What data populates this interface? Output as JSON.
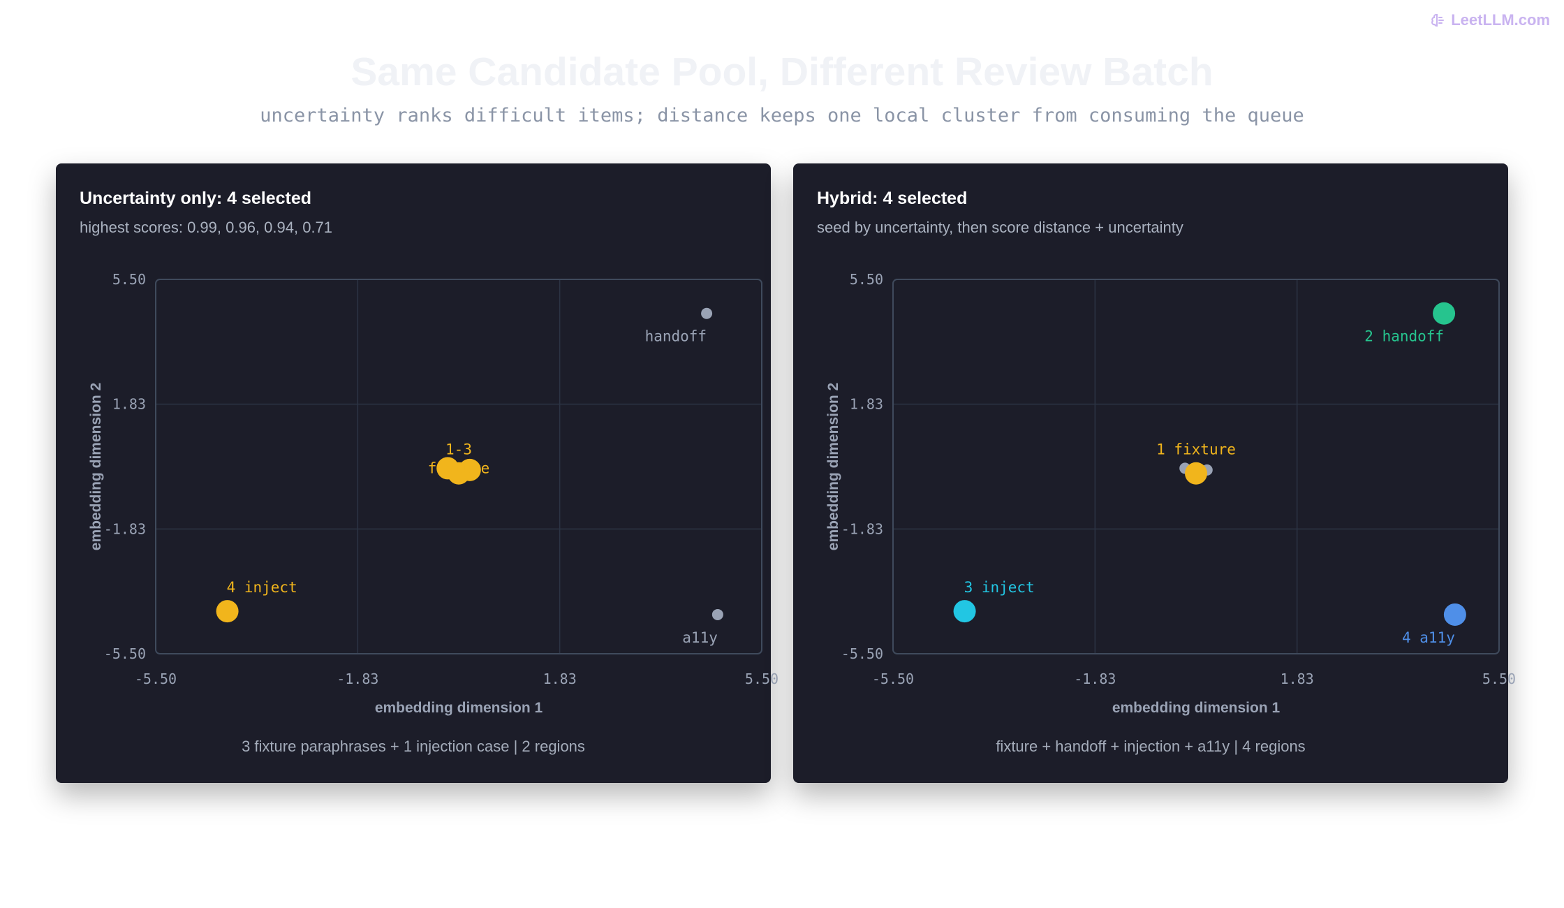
{
  "brand": {
    "name": "LeetLLM.com",
    "icon": "brain-icon"
  },
  "header": {
    "title": "Same Candidate Pool, Different Review Batch",
    "subtitle": "uncertainty ranks difficult items; distance keeps one local cluster from consuming the queue"
  },
  "colors": {
    "gray": "#9aa3b5",
    "amber": "#f1b51c",
    "green": "#26c48e",
    "cyan": "#22c6e3",
    "blue": "#4f8fe8",
    "grid": "#2c3444",
    "frame": "#3f4a5c"
  },
  "panels": [
    {
      "title": "Uncertainty only: 4 selected",
      "subtitle": "highest scores: 0.99, 0.96, 0.94, 0.71",
      "footer": "3 fixture paraphrases + 1 injection case | 2 regions"
    },
    {
      "title": "Hybrid: 4 selected",
      "subtitle": "seed by uncertainty, then score distance + uncertainty",
      "footer": "fixture + handoff + injection + a11y | 4 regions"
    }
  ],
  "chart_data": [
    {
      "type": "scatter",
      "xlabel": "embedding dimension 1",
      "ylabel": "embedding dimension 2",
      "xlim": [
        -5.5,
        5.5
      ],
      "ylim": [
        -5.5,
        5.5
      ],
      "xticks": [
        "-5.50",
        "-1.83",
        "1.83",
        "5.50"
      ],
      "yticks": [
        "5.50",
        "1.83",
        "-1.83",
        "-5.50"
      ],
      "grid": true,
      "points": [
        {
          "x": 4.5,
          "y": 4.5,
          "color": "gray",
          "selected": false
        },
        {
          "x": 4.7,
          "y": -4.35,
          "color": "gray",
          "selected": false
        },
        {
          "x": -0.2,
          "y": -0.05,
          "color": "amber",
          "selected": true
        },
        {
          "x": 0.2,
          "y": -0.1,
          "color": "amber",
          "selected": true
        },
        {
          "x": 0.0,
          "y": -0.2,
          "color": "amber",
          "selected": true
        },
        {
          "x": -4.2,
          "y": -4.25,
          "color": "amber",
          "selected": true
        }
      ],
      "labels": [
        {
          "text": "handoff",
          "x": 4.5,
          "y": 4.5,
          "color": "gray",
          "pos": "below-left"
        },
        {
          "text": "a11y",
          "x": 4.7,
          "y": -4.35,
          "color": "gray",
          "pos": "below-left"
        },
        {
          "text": "1-3",
          "x": 0.0,
          "y": -0.05,
          "color": "amber",
          "pos": "above"
        },
        {
          "text": "fixture",
          "x": 0.0,
          "y": -0.05,
          "color": "amber",
          "pos": "center"
        },
        {
          "text": "4 inject",
          "x": -4.2,
          "y": -4.25,
          "color": "amber",
          "pos": "above-right"
        }
      ]
    },
    {
      "type": "scatter",
      "xlabel": "embedding dimension 1",
      "ylabel": "embedding dimension 2",
      "xlim": [
        -5.5,
        5.5
      ],
      "ylim": [
        -5.5,
        5.5
      ],
      "xticks": [
        "-5.50",
        "-1.83",
        "1.83",
        "5.50"
      ],
      "yticks": [
        "5.50",
        "1.83",
        "-1.83",
        "-5.50"
      ],
      "grid": true,
      "points": [
        {
          "x": -0.2,
          "y": -0.05,
          "color": "gray",
          "selected": false
        },
        {
          "x": 0.2,
          "y": -0.1,
          "color": "gray",
          "selected": false
        },
        {
          "x": 0.0,
          "y": -0.2,
          "color": "amber",
          "selected": true
        },
        {
          "x": 4.5,
          "y": 4.5,
          "color": "green",
          "selected": true
        },
        {
          "x": -4.2,
          "y": -4.25,
          "color": "cyan",
          "selected": true
        },
        {
          "x": 4.7,
          "y": -4.35,
          "color": "blue",
          "selected": true
        }
      ],
      "labels": [
        {
          "text": "1 fixture",
          "x": 0.0,
          "y": -0.05,
          "color": "amber",
          "pos": "above"
        },
        {
          "text": "2 handoff",
          "x": 4.5,
          "y": 4.5,
          "color": "green",
          "pos": "below-left"
        },
        {
          "text": "3 inject",
          "x": -4.2,
          "y": -4.25,
          "color": "cyan",
          "pos": "above-right"
        },
        {
          "text": "4 a11y",
          "x": 4.7,
          "y": -4.35,
          "color": "blue",
          "pos": "below-left"
        }
      ]
    }
  ]
}
